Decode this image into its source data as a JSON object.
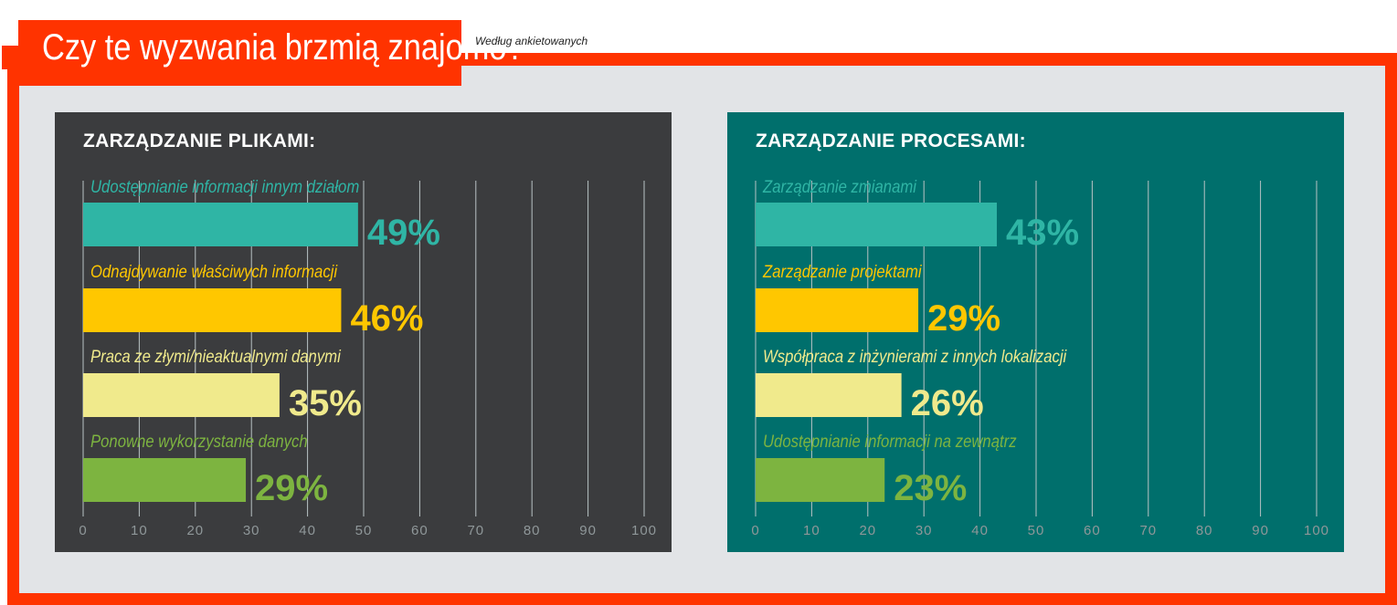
{
  "title": "Czy te wyzwania brzmią znajomo?",
  "subtitle": "Według ankietowanych",
  "colors": {
    "frame": "#ff3300",
    "teal": "#2fb5a5",
    "orange": "#ffc700",
    "yellow": "#f0ea8c",
    "green": "#7db440",
    "panel_left_bg": "#3b3c3e",
    "panel_right_bg": "#006f6c"
  },
  "chart_data": [
    {
      "type": "bar",
      "orientation": "horizontal",
      "title": "ZARZĄDZANIE PLIKAMI:",
      "categories": [
        "Udostępnianie informacji innym działom",
        "Odnajdywanie właściwych informacji",
        "Praca ze złymi/nieaktualnymi danymi",
        "Ponowne wykorzystanie danych"
      ],
      "values": [
        49,
        46,
        35,
        29
      ],
      "value_labels": [
        "49%",
        "46%",
        "35%",
        "29%"
      ],
      "colors": [
        "#2fb5a5",
        "#ffc700",
        "#f0ea8c",
        "#7db440"
      ],
      "xlim": [
        0,
        100
      ],
      "xticks": [
        "0",
        "10",
        "20",
        "30",
        "40",
        "50",
        "60",
        "70",
        "80",
        "90",
        "100"
      ],
      "grid": true
    },
    {
      "type": "bar",
      "orientation": "horizontal",
      "title": "ZARZĄDZANIE PROCESAMI:",
      "categories": [
        "Zarządzanie zmianami",
        "Zarządzanie projektami",
        "Współpraca z inżynierami z innych lokalizacji",
        "Udostępnianie informacji na zewnątrz"
      ],
      "values": [
        43,
        29,
        26,
        23
      ],
      "value_labels": [
        "43%",
        "29%",
        "26%",
        "23%"
      ],
      "colors": [
        "#2fb5a5",
        "#ffc700",
        "#f0ea8c",
        "#7db440"
      ],
      "xlim": [
        0,
        100
      ],
      "xticks": [
        "0",
        "10",
        "20",
        "30",
        "40",
        "50",
        "60",
        "70",
        "80",
        "90",
        "100"
      ],
      "grid": true
    }
  ]
}
